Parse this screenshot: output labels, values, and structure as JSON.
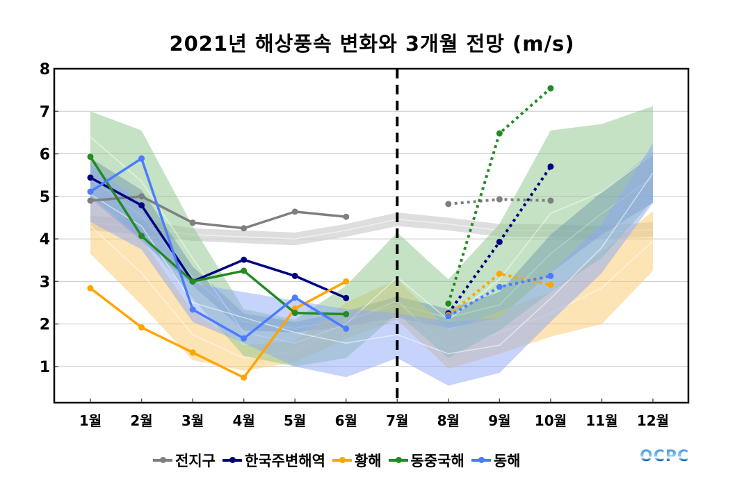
{
  "chart_data": {
    "type": "line",
    "title": "2021년 해상풍속 변화와 3개월 전망 (m/s)",
    "xlabel": "",
    "ylabel": "",
    "ylim": [
      0.15,
      8
    ],
    "yticks": [
      1,
      2,
      3,
      4,
      5,
      6,
      7,
      8
    ],
    "categories": [
      "1월",
      "2월",
      "3월",
      "4월",
      "5월",
      "6월",
      "7월",
      "8월",
      "9월",
      "10월",
      "11월",
      "12월"
    ],
    "grid": "horizontal",
    "legend_position": "bottom",
    "forecast_divider_month": 7,
    "series": [
      {
        "name": "전지구",
        "color": "#7f7f7f",
        "observed": [
          4.9,
          5.0,
          4.38,
          4.25,
          4.64,
          4.52,
          null,
          null,
          null,
          null,
          null,
          null
        ],
        "forecast": [
          null,
          null,
          null,
          null,
          null,
          null,
          null,
          4.82,
          4.93,
          4.9,
          null,
          null
        ],
        "band_color": "#d3d3d3",
        "band_lower": [
          4.2,
          4.1,
          3.95,
          3.9,
          3.85,
          4.05,
          4.3,
          4.2,
          4.05,
          4.05,
          4.0,
          4.05
        ],
        "band_upper": [
          4.55,
          4.45,
          4.25,
          4.2,
          4.15,
          4.35,
          4.62,
          4.5,
          4.35,
          4.35,
          4.3,
          4.4
        ],
        "band_mean": [
          4.38,
          4.28,
          4.1,
          4.05,
          4.0,
          4.2,
          4.46,
          4.35,
          4.2,
          4.2,
          4.15,
          4.22
        ]
      },
      {
        "name": "한국주변해역",
        "color": "#000080",
        "observed": [
          5.44,
          4.79,
          3.0,
          3.51,
          3.13,
          2.61,
          null,
          null,
          null,
          null,
          null,
          null
        ],
        "forecast": [
          null,
          null,
          null,
          null,
          null,
          null,
          null,
          2.25,
          3.93,
          5.7,
          null,
          null
        ],
        "band_color": "#5a6fcf",
        "band_lower": [
          4.95,
          3.95,
          2.9,
          1.85,
          1.8,
          1.95,
          2.15,
          1.9,
          2.15,
          3.2,
          4.1,
          4.85
        ],
        "band_upper": [
          5.9,
          5.15,
          3.35,
          2.25,
          2.05,
          2.3,
          2.65,
          2.35,
          2.75,
          4.1,
          5.1,
          6.05
        ],
        "band_mean": [
          5.4,
          4.55,
          3.1,
          2.05,
          1.9,
          2.1,
          2.45,
          2.15,
          2.45,
          3.65,
          4.6,
          5.45
        ]
      },
      {
        "name": "황해",
        "color": "#ffa500",
        "observed": [
          2.84,
          1.92,
          1.33,
          0.74,
          2.36,
          3.0,
          null,
          null,
          null,
          null,
          null,
          null
        ],
        "forecast": [
          null,
          null,
          null,
          null,
          null,
          null,
          null,
          2.21,
          3.18,
          2.92,
          null,
          null
        ],
        "band_color": "#fbc96b",
        "band_lower": [
          3.65,
          2.45,
          1.15,
          0.9,
          1.1,
          1.65,
          2.1,
          0.95,
          1.3,
          1.7,
          2.0,
          3.25
        ],
        "band_upper": [
          5.0,
          4.0,
          2.3,
          1.5,
          1.6,
          2.5,
          3.05,
          1.85,
          2.3,
          2.75,
          3.7,
          4.65
        ],
        "band_mean": [
          4.3,
          3.2,
          1.75,
          1.2,
          1.35,
          2.05,
          2.55,
          1.4,
          1.8,
          2.25,
          2.85,
          3.95
        ]
      },
      {
        "name": "동중국해",
        "color": "#228b22",
        "observed": [
          5.93,
          4.07,
          3.0,
          3.25,
          2.26,
          2.23,
          null,
          null,
          null,
          null,
          null,
          null
        ],
        "forecast": [
          null,
          null,
          null,
          null,
          null,
          null,
          null,
          2.48,
          6.48,
          7.54,
          null,
          null
        ],
        "band_color": "#8cc68c",
        "band_lower": [
          5.0,
          4.05,
          2.6,
          1.25,
          1.0,
          1.2,
          2.25,
          1.2,
          1.85,
          2.75,
          3.55,
          4.9
        ],
        "band_upper": [
          7.0,
          6.55,
          4.3,
          2.35,
          2.1,
          2.9,
          4.15,
          3.05,
          4.35,
          6.55,
          6.7,
          7.12
        ],
        "band_mean": [
          6.4,
          5.35,
          3.55,
          1.8,
          1.55,
          2.0,
          3.1,
          2.1,
          3.05,
          4.6,
          5.1,
          6.0
        ]
      },
      {
        "name": "동해",
        "color": "#4b7bff",
        "observed": [
          5.11,
          5.89,
          2.34,
          1.66,
          2.62,
          1.89,
          null,
          null,
          null,
          null,
          null,
          null
        ],
        "forecast": [
          null,
          null,
          null,
          null,
          null,
          null,
          null,
          2.18,
          2.87,
          3.13,
          null,
          null
        ],
        "band_color": "#8ea8f5",
        "band_lower": [
          4.4,
          3.75,
          2.05,
          1.55,
          1.0,
          0.75,
          1.2,
          0.55,
          0.85,
          2.05,
          3.2,
          4.85
        ],
        "band_upper": [
          5.75,
          4.85,
          2.95,
          2.75,
          2.55,
          2.35,
          2.25,
          2.05,
          2.15,
          3.2,
          4.35,
          6.25
        ],
        "band_mean": [
          5.05,
          4.3,
          2.5,
          2.15,
          1.8,
          1.55,
          1.75,
          1.3,
          1.5,
          2.6,
          3.8,
          5.55
        ]
      }
    ]
  },
  "legend": {
    "items": [
      {
        "label": "전지구",
        "color": "#7f7f7f"
      },
      {
        "label": "한국주변해역",
        "color": "#000080"
      },
      {
        "label": "황해",
        "color": "#ffa500"
      },
      {
        "label": "동중국해",
        "color": "#228b22"
      },
      {
        "label": "동해",
        "color": "#4b7bff"
      }
    ]
  },
  "logo": {
    "text": "OCPC"
  }
}
